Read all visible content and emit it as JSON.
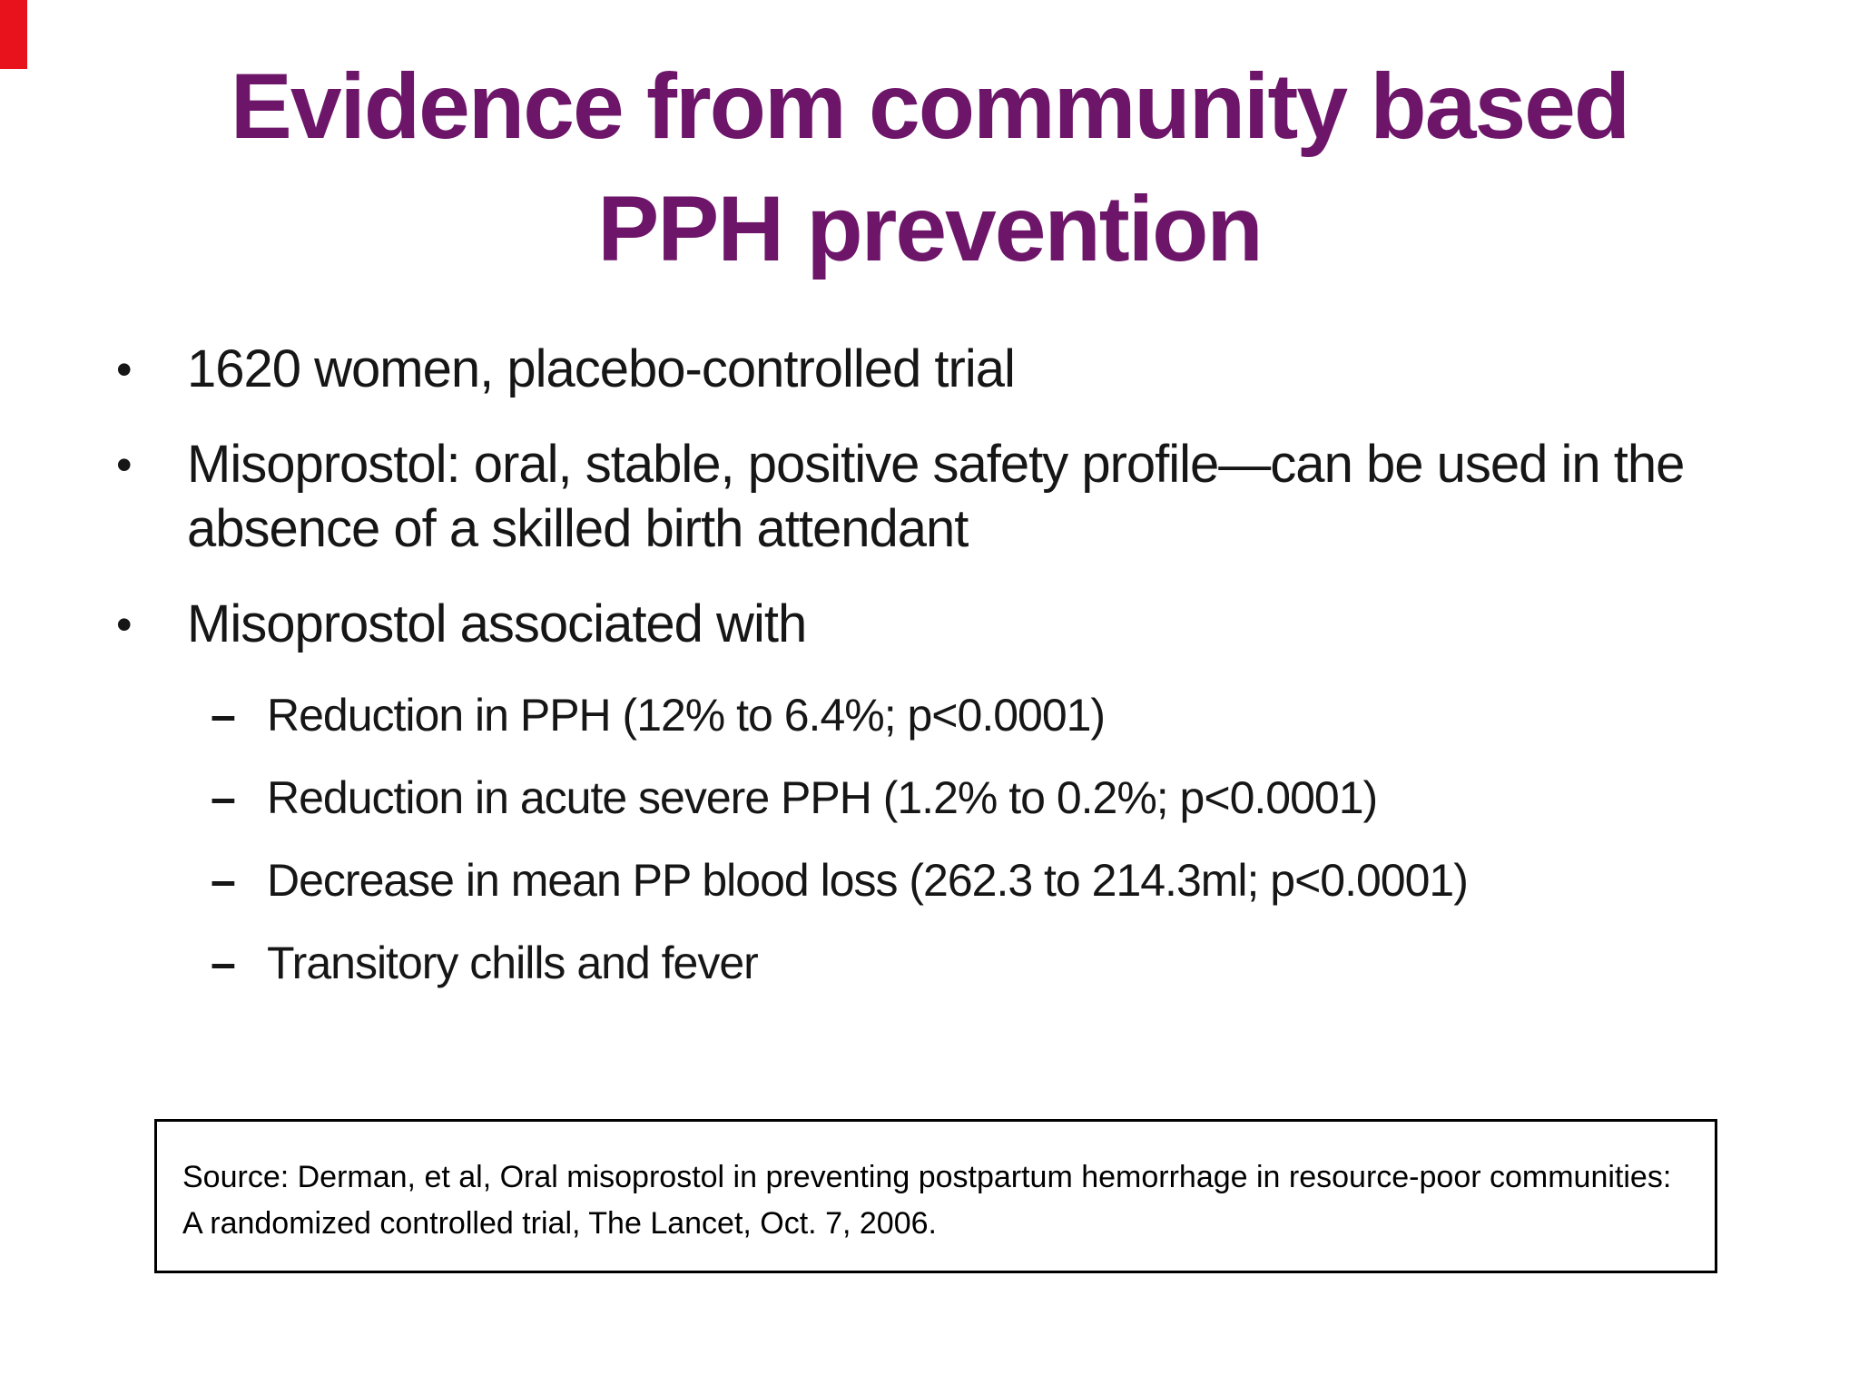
{
  "slide": {
    "decorations": {
      "corner_accent_color": "#e8121c"
    },
    "title": {
      "line1": "Evidence from community based",
      "line2": "PPH prevention",
      "color": "#6d1669"
    },
    "bullets": [
      {
        "level": 1,
        "marker": "•",
        "text": "1620 women, placebo-controlled trial"
      },
      {
        "level": 1,
        "marker": "•",
        "text": "Misoprostol: oral, stable, positive safety profile—can be used in the absence of a skilled birth attendant"
      },
      {
        "level": 1,
        "marker": "•",
        "text": "Misoprostol associated with"
      },
      {
        "level": 2,
        "marker": "–",
        "text": "Reduction in PPH (12% to 6.4%; p<0.0001)"
      },
      {
        "level": 2,
        "marker": "–",
        "text": "Reduction in acute severe PPH (1.2% to 0.2%; p<0.0001)"
      },
      {
        "level": 2,
        "marker": "–",
        "text": "Decrease in mean PP blood loss (262.3 to 214.3ml; p<0.0001)"
      },
      {
        "level": 2,
        "marker": "–",
        "text": "Transitory chills and fever"
      }
    ],
    "source_box": {
      "text": "Source: Derman, et al, Oral misoprostol in preventing postpartum hemorrhage in resource-poor communities: A randomized controlled trial, The Lancet, Oct. 7, 2006."
    }
  }
}
